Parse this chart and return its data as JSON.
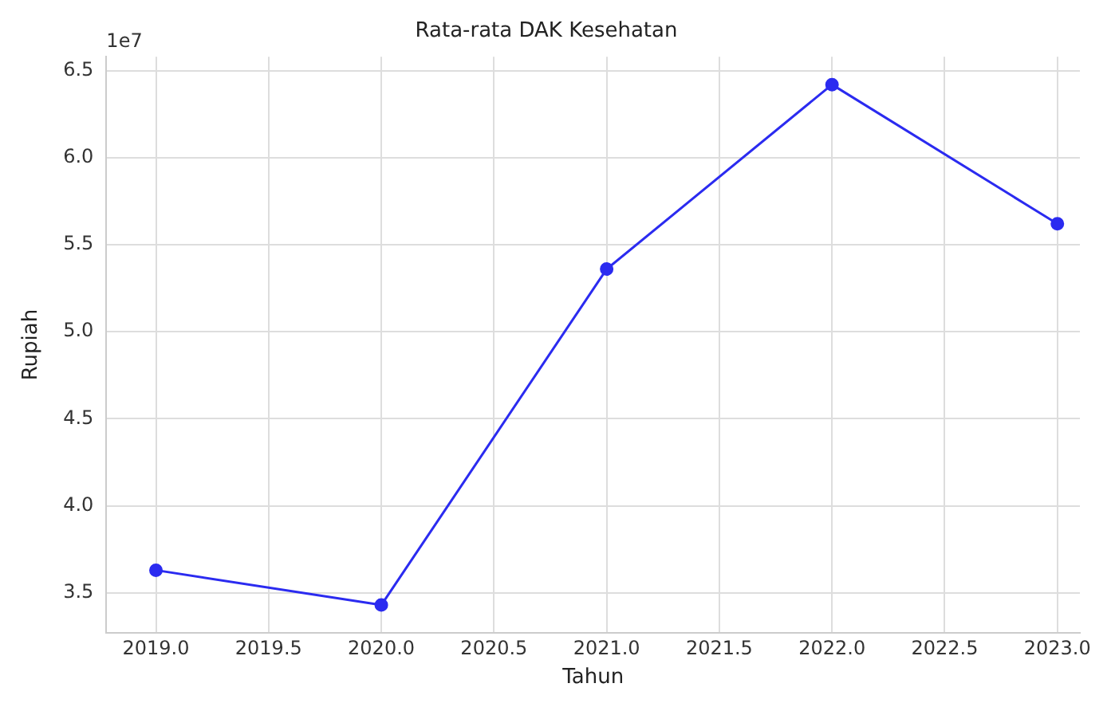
{
  "chart_data": {
    "type": "line",
    "title": "Rata-rata DAK Kesehatan",
    "xlabel": "Tahun",
    "ylabel": "Rupiah",
    "annotations": [
      "1e7"
    ],
    "x": [
      2019,
      2020,
      2021,
      2022,
      2023
    ],
    "series": [
      {
        "color": "#2b2bf0",
        "values": [
          3.63,
          3.43,
          5.36,
          6.42,
          5.62
        ]
      }
    ],
    "xlim": [
      2018.78,
      2023.1
    ],
    "xticks": [
      {
        "value": 2019,
        "label": "2019.0"
      },
      {
        "value": 2019.5,
        "label": "2019.5"
      },
      {
        "value": 2020,
        "label": "2020.0"
      },
      {
        "value": 2020.5,
        "label": "2020.5"
      },
      {
        "value": 2021,
        "label": "2021.0"
      },
      {
        "value": 2021.5,
        "label": "2021.5"
      },
      {
        "value": 2022,
        "label": "2022.0"
      },
      {
        "value": 2022.5,
        "label": "2022.5"
      },
      {
        "value": 2023,
        "label": "2023.0"
      }
    ],
    "ylim": [
      3.27,
      6.58
    ],
    "yticks": [
      {
        "value": 3.5,
        "label": "3.5"
      },
      {
        "value": 4,
        "label": "4.0"
      },
      {
        "value": 4.5,
        "label": "4.5"
      },
      {
        "value": 5,
        "label": "5.0"
      },
      {
        "value": 5.5,
        "label": "5.5"
      },
      {
        "value": 6,
        "label": "6.0"
      },
      {
        "value": 6.5,
        "label": "6.5"
      }
    ],
    "grid": true,
    "marker": "circle",
    "line_style": "solid"
  }
}
